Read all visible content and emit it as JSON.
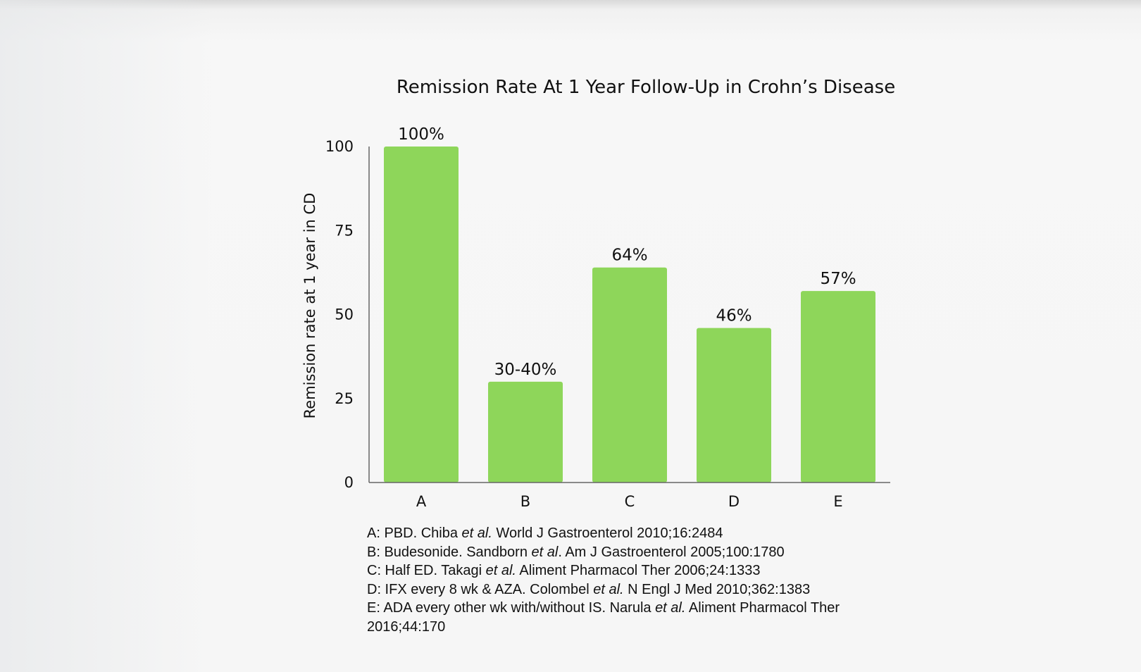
{
  "chart_data": {
    "type": "bar",
    "title": "Remission Rate At 1 Year Follow-Up in Crohn’s Disease",
    "xlabel": "",
    "ylabel": "Remission rate at 1 year in CD",
    "ylim": [
      0,
      100
    ],
    "yticks": [
      0,
      25,
      50,
      75,
      100
    ],
    "categories": [
      "A",
      "B",
      "C",
      "D",
      "E"
    ],
    "values": [
      100,
      30,
      64,
      46,
      57
    ],
    "value_labels": [
      "100%",
      "30-40%",
      "64%",
      "46%",
      "57%"
    ],
    "bar_color": "#8ed65a",
    "grid": false,
    "legend": "none"
  },
  "references": [
    {
      "pre": "A: PBD. Chiba ",
      "etal": "et al.",
      "post": " World J Gastroenterol 2010;16:2484"
    },
    {
      "pre": "B: Budesonide. Sandborn ",
      "etal": "et al",
      "post": ". Am J Gastroenterol 2005;100:1780"
    },
    {
      "pre": "C: Half ED. Takagi ",
      "etal": "et al.",
      "post": " Aliment Pharmacol Ther 2006;24:1333"
    },
    {
      "pre": "D: IFX every 8 wk & AZA. Colombel ",
      "etal": "et al.",
      "post": " N Engl J Med 2010;362:1383"
    },
    {
      "pre": "E: ADA every other wk with/without IS. Narula ",
      "etal": "et al.",
      "post": " Aliment Pharmacol Ther 2016;44:170"
    }
  ]
}
